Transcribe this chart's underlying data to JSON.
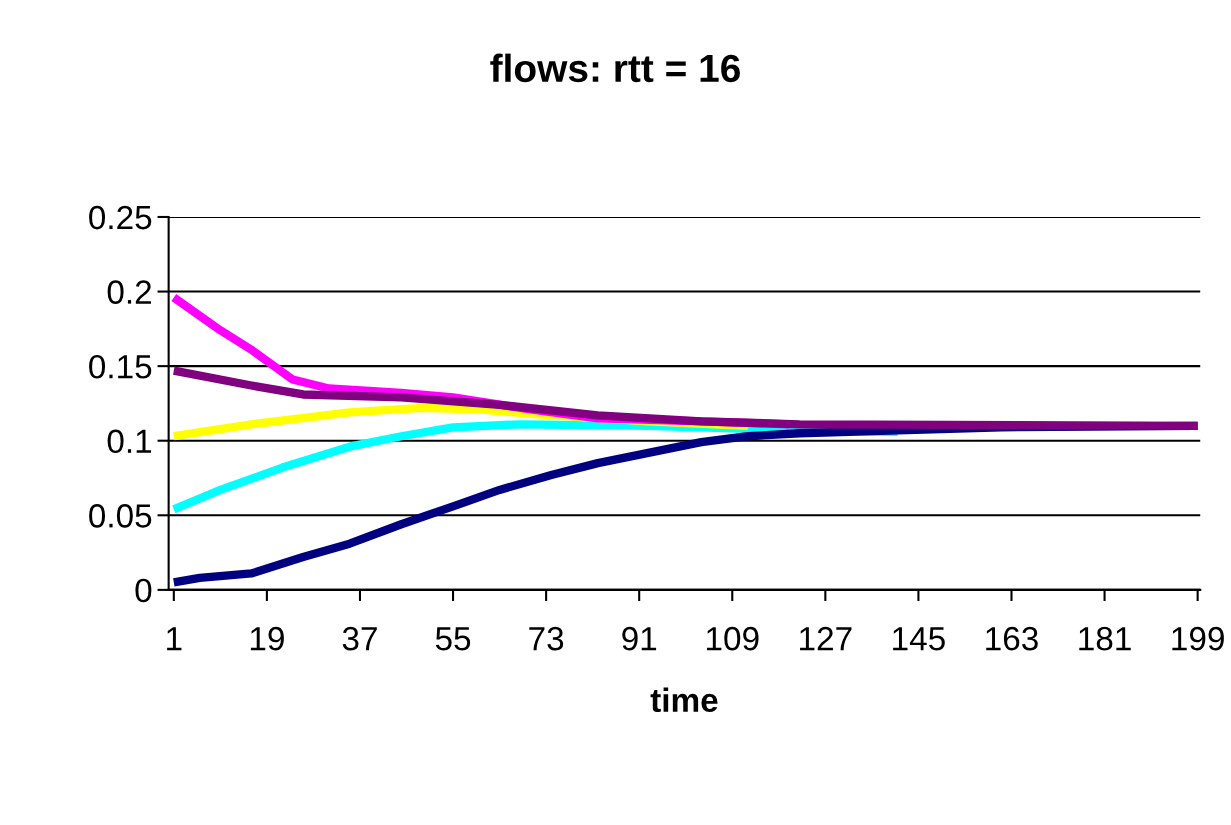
{
  "chart_data": {
    "type": "line",
    "title": "flows: rtt = 16",
    "xlabel": "time",
    "xlim": [
      0,
      199.5
    ],
    "xticks": [
      1,
      19,
      37,
      55,
      73,
      91,
      109,
      127,
      145,
      163,
      181,
      199
    ],
    "ylim": [
      0,
      0.25
    ],
    "yticks": [
      0,
      0.05,
      0.1,
      0.15,
      0.2,
      0.25
    ],
    "grid": "y",
    "line_style": "solid",
    "series": [
      {
        "color": "#00ffff",
        "x": [
          1,
          10,
          22,
          35,
          45,
          55,
          68,
          93,
          122,
          141
        ],
        "values": [
          0.054,
          0.067,
          0.082,
          0.096,
          0.103,
          0.109,
          0.111,
          0.11,
          0.107,
          0.106
        ]
      },
      {
        "color": "#000080",
        "x": [
          1,
          6,
          16,
          26,
          35,
          45,
          55,
          64,
          74,
          83,
          93,
          103,
          112,
          122,
          141,
          161,
          199
        ],
        "values": [
          0.005,
          0.008,
          0.011,
          0.022,
          0.031,
          0.044,
          0.056,
          0.067,
          0.077,
          0.085,
          0.092,
          0.099,
          0.103,
          0.105,
          0.107,
          0.109,
          0.11
        ]
      },
      {
        "color": "#ffff00",
        "x": [
          1,
          16,
          35,
          49,
          60,
          74,
          93,
          112
        ],
        "values": [
          0.103,
          0.111,
          0.119,
          0.122,
          0.121,
          0.117,
          0.113,
          0.11
        ]
      },
      {
        "color": "#ff00ff",
        "x": [
          1,
          10,
          16,
          24,
          31,
          45,
          55,
          70,
          83,
          103,
          120
        ],
        "values": [
          0.196,
          0.174,
          0.161,
          0.141,
          0.135,
          0.132,
          0.129,
          0.121,
          0.115,
          0.113,
          0.111
        ]
      },
      {
        "color": "#800080",
        "x": [
          1,
          16,
          26,
          45,
          64,
          83,
          103,
          122,
          199
        ],
        "values": [
          0.147,
          0.137,
          0.131,
          0.129,
          0.124,
          0.117,
          0.113,
          0.111,
          0.11
        ]
      }
    ]
  }
}
